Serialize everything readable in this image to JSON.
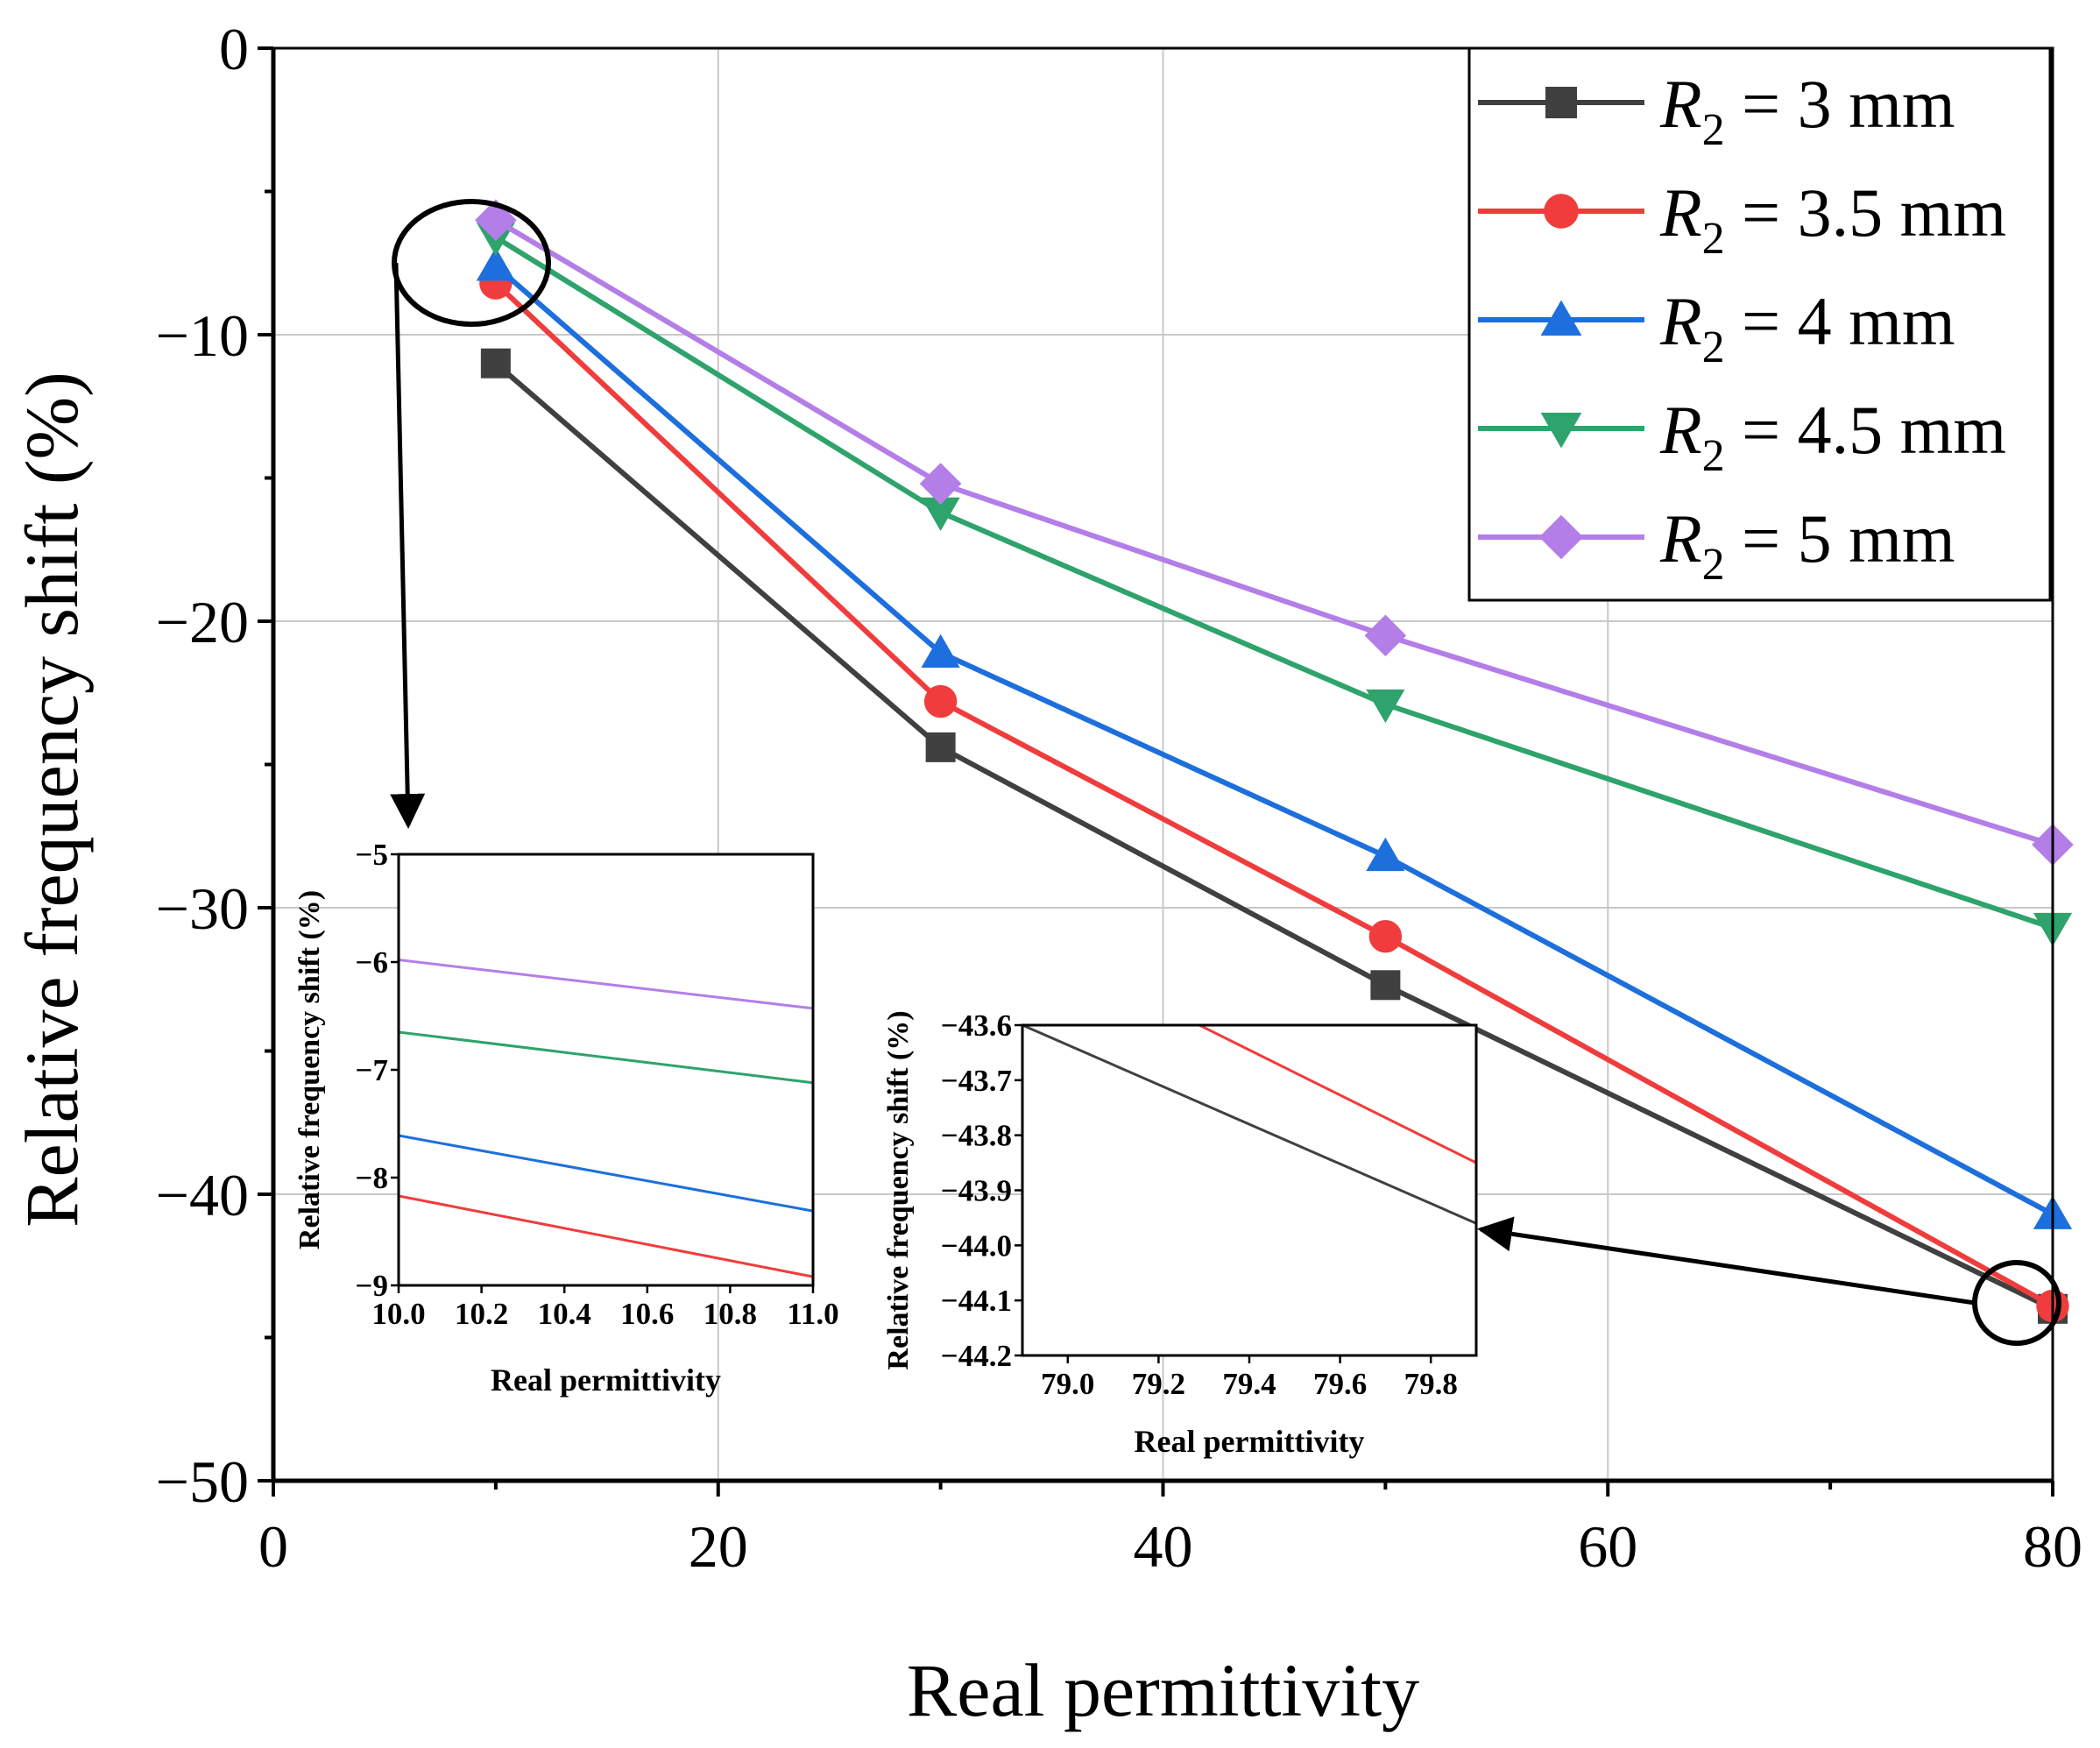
{
  "chart_data": [
    {
      "type": "line",
      "title": "",
      "xlabel": "Real permittivity",
      "ylabel": "Relative frequency shift (%)",
      "xlim": [
        0,
        80
      ],
      "ylim": [
        -50,
        0
      ],
      "xticks": [
        0,
        20,
        40,
        60,
        80
      ],
      "yticks": [
        0,
        -10,
        -20,
        -30,
        -40,
        -50
      ],
      "xtick_labels": [
        "0",
        "20",
        "40",
        "60",
        "80"
      ],
      "ytick_labels": [
        "0",
        "−10",
        "−20",
        "−30",
        "−40",
        "−50"
      ],
      "grid": true,
      "legend_position": "top-right",
      "x": [
        10,
        30,
        50,
        80
      ],
      "series": [
        {
          "name": "R2 = 3 mm",
          "legend_symbol": "R",
          "legend_sub": "2",
          "legend_rest": " = 3 mm",
          "color": "#404040",
          "marker": "square",
          "values": [
            -11.0,
            -24.4,
            -32.7,
            -44.0
          ]
        },
        {
          "name": "R2 = 3.5 mm",
          "legend_symbol": "R",
          "legend_sub": "2",
          "legend_rest": " = 3.5 mm",
          "color": "#f03c3c",
          "marker": "circle",
          "values": [
            -8.2,
            -22.8,
            -31.0,
            -43.9
          ]
        },
        {
          "name": "R2 = 4 mm",
          "legend_symbol": "R",
          "legend_sub": "2",
          "legend_rest": " = 4 mm",
          "color": "#1c6fdc",
          "marker": "triangle-up",
          "values": [
            -7.6,
            -21.1,
            -28.2,
            -40.7
          ]
        },
        {
          "name": "R2 = 4.5 mm",
          "legend_symbol": "R",
          "legend_sub": "2",
          "legend_rest": " = 4.5 mm",
          "color": "#2ea36b",
          "marker": "triangle-down",
          "values": [
            -6.6,
            -16.2,
            -22.9,
            -30.7
          ]
        },
        {
          "name": "R2 = 5 mm",
          "legend_symbol": "R",
          "legend_sub": "2",
          "legend_rest": " = 5 mm",
          "color": "#b47ee8",
          "marker": "diamond",
          "values": [
            -6.0,
            -15.2,
            -20.5,
            -27.8
          ]
        }
      ]
    },
    {
      "type": "line",
      "role": "inset-left",
      "xlabel": "Real permittivity",
      "ylabel": "Relative frequency shift (%)",
      "xlim": [
        10.0,
        11.0
      ],
      "ylim": [
        -9,
        -5
      ],
      "xticks": [
        10.0,
        10.2,
        10.4,
        10.6,
        10.8,
        11.0
      ],
      "yticks": [
        -5,
        -6,
        -7,
        -8,
        -9
      ],
      "xtick_labels": [
        "10.0",
        "10.2",
        "10.4",
        "10.6",
        "10.8",
        "11.0"
      ],
      "ytick_labels": [
        "−5",
        "−6",
        "−7",
        "−8",
        "−9"
      ],
      "x": [
        10.0,
        11.0
      ],
      "series": [
        {
          "name": "R2 = 3.5 mm",
          "color": "#f03c3c",
          "values": [
            -8.17,
            -8.92
          ]
        },
        {
          "name": "R2 = 4 mm",
          "color": "#1c6fdc",
          "values": [
            -7.61,
            -8.31
          ]
        },
        {
          "name": "R2 = 4.5 mm",
          "color": "#2ea36b",
          "values": [
            -6.65,
            -7.12
          ]
        },
        {
          "name": "R2 = 5 mm",
          "color": "#b47ee8",
          "values": [
            -5.98,
            -6.43
          ]
        }
      ]
    },
    {
      "type": "line",
      "role": "inset-right",
      "xlabel": "Real permittivity",
      "ylabel": "Relative frequency shift (%)",
      "xlim": [
        78.9,
        79.9
      ],
      "ylim": [
        -44.2,
        -43.6
      ],
      "xticks": [
        79.0,
        79.2,
        79.4,
        79.6,
        79.8
      ],
      "yticks": [
        -43.6,
        -43.7,
        -43.8,
        -43.9,
        -44.0,
        -44.1,
        -44.2
      ],
      "xtick_labels": [
        "79.0",
        "79.2",
        "79.4",
        "79.6",
        "79.8"
      ],
      "ytick_labels": [
        "−43.6",
        "−43.7",
        "−43.8",
        "−43.9",
        "−44.0",
        "−44.1",
        "−44.2"
      ],
      "series": [
        {
          "name": "R2 = 3 mm",
          "color": "#404040",
          "x": [
            78.9,
            79.9
          ],
          "values": [
            -43.6,
            -43.96
          ]
        },
        {
          "name": "R2 = 3.5 mm",
          "color": "#f03c3c",
          "x": [
            79.29,
            79.9
          ],
          "values": [
            -43.6,
            -43.85
          ]
        }
      ]
    }
  ]
}
